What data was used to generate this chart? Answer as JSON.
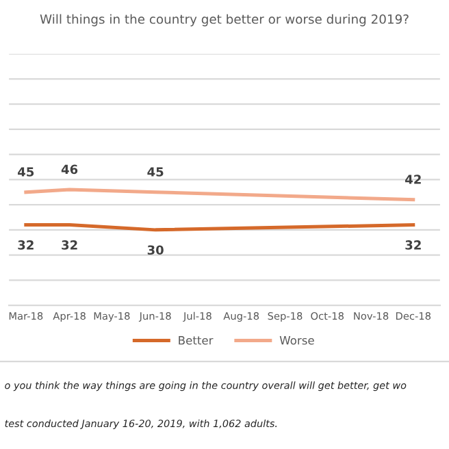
{
  "chart_data": {
    "type": "line",
    "title": "Will things in the country get better or worse during 2019?",
    "x": [
      "2018-03-01",
      "2018-04-01",
      "2018-06-01",
      "2018-12-01"
    ],
    "series": [
      {
        "name": "Better",
        "color": "#d5692a",
        "values": [
          32,
          32,
          30,
          32
        ]
      },
      {
        "name": "Worse",
        "color": "#f2a98a",
        "values": [
          45,
          46,
          45,
          42
        ]
      }
    ],
    "data_labels": true,
    "xlim": [
      "2018-02-17",
      "2018-12-20"
    ],
    "xticks": [
      {
        "value": "2018-03-01",
        "label": "Mar-18"
      },
      {
        "value": "2018-04-01",
        "label": "Apr-18"
      },
      {
        "value": "2018-05-01",
        "label": "May-18"
      },
      {
        "value": "2018-06-01",
        "label": "Jun-18"
      },
      {
        "value": "2018-07-01",
        "label": "Jul-18"
      },
      {
        "value": "2018-08-01",
        "label": "Aug-18"
      },
      {
        "value": "2018-09-01",
        "label": "Sep-18"
      },
      {
        "value": "2018-10-01",
        "label": "Oct-18"
      },
      {
        "value": "2018-11-01",
        "label": "Nov-18"
      },
      {
        "value": "2018-12-01",
        "label": "Dec-18"
      }
    ],
    "ylim": [
      0,
      100
    ],
    "yticks": [
      {
        "value": 0,
        "label": null
      },
      {
        "value": 10,
        "label": null
      },
      {
        "value": 20,
        "label": null
      },
      {
        "value": 30,
        "label": null
      },
      {
        "value": 40,
        "label": null
      },
      {
        "value": 50,
        "label": null
      },
      {
        "value": 60,
        "label": null
      },
      {
        "value": 70,
        "label": null
      },
      {
        "value": 80,
        "label": null
      },
      {
        "value": 90,
        "label": null
      },
      {
        "value": 100,
        "label": null
      }
    ],
    "tick_labels": "x",
    "grid": "y",
    "legend": "bottom",
    "marker": "none",
    "line_style": "solid",
    "annotations": [
      "o you think the way things are going in the country overall will get better, get wo",
      "test conducted January 16-20, 2019, with 1,062 adults."
    ]
  }
}
